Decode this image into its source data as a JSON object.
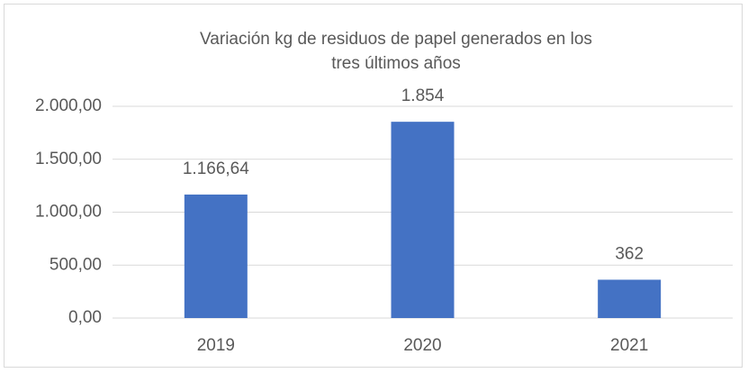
{
  "chart_data": {
    "type": "bar",
    "title": "Variación kg de residuos de papel generados en los tres últimos años",
    "categories": [
      "2019",
      "2020",
      "2021"
    ],
    "values": [
      1166.64,
      1854,
      362
    ],
    "value_labels": [
      "1.166,64",
      "1.854",
      "362"
    ],
    "color": "#4472c4",
    "ylim": [
      0,
      2000
    ],
    "yticks": [
      {
        "value": 0,
        "label": "0,00"
      },
      {
        "value": 500,
        "label": "500,00"
      },
      {
        "value": 1000,
        "label": "1.000,00"
      },
      {
        "value": 1500,
        "label": "1.500,00"
      },
      {
        "value": 2000,
        "label": "2.000,00"
      }
    ],
    "grid": true
  }
}
